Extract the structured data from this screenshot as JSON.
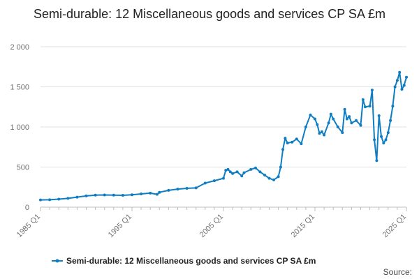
{
  "chart_data": {
    "type": "line",
    "title": "Semi-durable: 12 Miscellaneous goods and services CP SA £m",
    "xlabel": "",
    "ylabel": "",
    "x_ticks": [
      "1985 Q1",
      "1995 Q1",
      "2005 Q1",
      "2015 Q1",
      "2025 Q1"
    ],
    "y_ticks": [
      0,
      500,
      1000,
      1500,
      2000
    ],
    "y_tick_labels": [
      "0",
      "500",
      "1 000",
      "1 500",
      "2 000"
    ],
    "ylim": [
      0,
      2000
    ],
    "xlim": [
      "1985 Q1",
      "2025 Q1"
    ],
    "grid": "horizontal",
    "legend_position": "bottom",
    "source_label": "Source:",
    "colors": {
      "series": "#0f7dc2",
      "grid": "#e0e0e0",
      "axis": "#bdbdbd"
    },
    "series": [
      {
        "name": "Semi-durable: 12 Miscellaneous goods and services CP SA £m",
        "points": [
          [
            "1985 Q1",
            90
          ],
          [
            "1986 Q1",
            92
          ],
          [
            "1987 Q1",
            100
          ],
          [
            "1988 Q1",
            110
          ],
          [
            "1989 Q1",
            125
          ],
          [
            "1990 Q1",
            140
          ],
          [
            "1991 Q1",
            150
          ],
          [
            "1992 Q1",
            152
          ],
          [
            "1993 Q1",
            150
          ],
          [
            "1994 Q1",
            148
          ],
          [
            "1995 Q1",
            155
          ],
          [
            "1996 Q1",
            165
          ],
          [
            "1997 Q1",
            175
          ],
          [
            "1997 Q4",
            160
          ],
          [
            "1998 Q1",
            185
          ],
          [
            "1999 Q1",
            210
          ],
          [
            "2000 Q1",
            225
          ],
          [
            "2001 Q1",
            235
          ],
          [
            "2002 Q1",
            240
          ],
          [
            "2003 Q1",
            300
          ],
          [
            "2004 Q1",
            330
          ],
          [
            "2005 Q1",
            360
          ],
          [
            "2005 Q2",
            460
          ],
          [
            "2005 Q3",
            470
          ],
          [
            "2005 Q4",
            440
          ],
          [
            "2006 Q1",
            420
          ],
          [
            "2006 Q3",
            440
          ],
          [
            "2007 Q1",
            390
          ],
          [
            "2007 Q2",
            430
          ],
          [
            "2008 Q1",
            470
          ],
          [
            "2008 Q3",
            490
          ],
          [
            "2009 Q1",
            440
          ],
          [
            "2009 Q3",
            400
          ],
          [
            "2010 Q1",
            360
          ],
          [
            "2010 Q3",
            340
          ],
          [
            "2011 Q1",
            380
          ],
          [
            "2011 Q2",
            500
          ],
          [
            "2011 Q3",
            720
          ],
          [
            "2011 Q4",
            860
          ],
          [
            "2012 Q1",
            800
          ],
          [
            "2012 Q3",
            810
          ],
          [
            "2013 Q1",
            850
          ],
          [
            "2013 Q3",
            790
          ],
          [
            "2014 Q1",
            1000
          ],
          [
            "2014 Q3",
            1150
          ],
          [
            "2015 Q1",
            1100
          ],
          [
            "2015 Q2",
            1030
          ],
          [
            "2015 Q3",
            920
          ],
          [
            "2015 Q4",
            940
          ],
          [
            "2016 Q1",
            900
          ],
          [
            "2016 Q3",
            1050
          ],
          [
            "2016 Q4",
            1160
          ],
          [
            "2017 Q1",
            1100
          ],
          [
            "2017 Q3",
            1000
          ],
          [
            "2018 Q1",
            930
          ],
          [
            "2018 Q2",
            1220
          ],
          [
            "2018 Q3",
            1100
          ],
          [
            "2018 Q4",
            1130
          ],
          [
            "2019 Q1",
            1050
          ],
          [
            "2019 Q3",
            1080
          ],
          [
            "2020 Q1",
            1020
          ],
          [
            "2020 Q2",
            1340
          ],
          [
            "2020 Q3",
            1250
          ],
          [
            "2021 Q1",
            1260
          ],
          [
            "2021 Q2",
            1460
          ],
          [
            "2021 Q3",
            840
          ],
          [
            "2021 Q4",
            580
          ],
          [
            "2022 Q1",
            1140
          ],
          [
            "2022 Q2",
            880
          ],
          [
            "2022 Q3",
            800
          ],
          [
            "2022 Q4",
            840
          ],
          [
            "2023 Q1",
            930
          ],
          [
            "2023 Q2",
            1080
          ],
          [
            "2023 Q3",
            1260
          ],
          [
            "2023 Q4",
            1500
          ],
          [
            "2024 Q1",
            1580
          ],
          [
            "2024 Q2",
            1680
          ],
          [
            "2024 Q3",
            1470
          ],
          [
            "2024 Q4",
            1520
          ],
          [
            "2025 Q1",
            1620
          ]
        ]
      }
    ]
  }
}
